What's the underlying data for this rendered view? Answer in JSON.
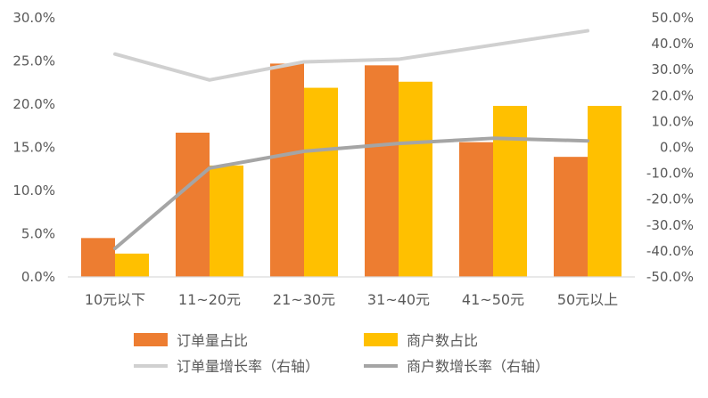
{
  "chart_data": {
    "type": "bar",
    "categories": [
      "10元以下",
      "11~20元",
      "21~30元",
      "31~40元",
      "41~50元",
      "50元以上"
    ],
    "series": [
      {
        "name": "订单量占比",
        "type": "bar",
        "axis": "left",
        "color": "#ED7D31",
        "values": [
          4.5,
          16.7,
          24.7,
          24.5,
          15.6,
          13.9
        ]
      },
      {
        "name": "商户数占比",
        "type": "bar",
        "axis": "left",
        "color": "#FFC000",
        "values": [
          2.7,
          12.9,
          21.9,
          22.6,
          19.8,
          19.8
        ]
      },
      {
        "name": "订单量增长率（右轴）",
        "type": "line",
        "axis": "right",
        "color": "#D0D0D0",
        "values": [
          36.0,
          26.0,
          33.0,
          34.0,
          null,
          45.0
        ]
      },
      {
        "name": "商户数增长率（右轴）",
        "type": "line",
        "axis": "right",
        "color": "#A5A5A5",
        "values": [
          -39.0,
          -8.0,
          -1.5,
          1.5,
          3.5,
          2.5
        ]
      }
    ],
    "y_left": {
      "min": 0,
      "max": 30,
      "ticks": [
        0,
        5,
        10,
        15,
        20,
        25,
        30
      ],
      "tick_labels": [
        "0.0%",
        "5.0%",
        "10.0%",
        "15.0%",
        "20.0%",
        "25.0%",
        "30.0%"
      ]
    },
    "y_right": {
      "min": -50,
      "max": 50,
      "ticks": [
        -50,
        -40,
        -30,
        -20,
        -10,
        0,
        10,
        20,
        30,
        40,
        50
      ],
      "tick_labels": [
        "-50.0%",
        "-40.0%",
        "-30.0%",
        "-20.0%",
        "-10.0%",
        "0.0%",
        "10.0%",
        "20.0%",
        "30.0%",
        "40.0%",
        "50.0%"
      ]
    },
    "grid": false,
    "legend_position": "bottom",
    "title": "",
    "xlabel": "",
    "ylabel": ""
  }
}
